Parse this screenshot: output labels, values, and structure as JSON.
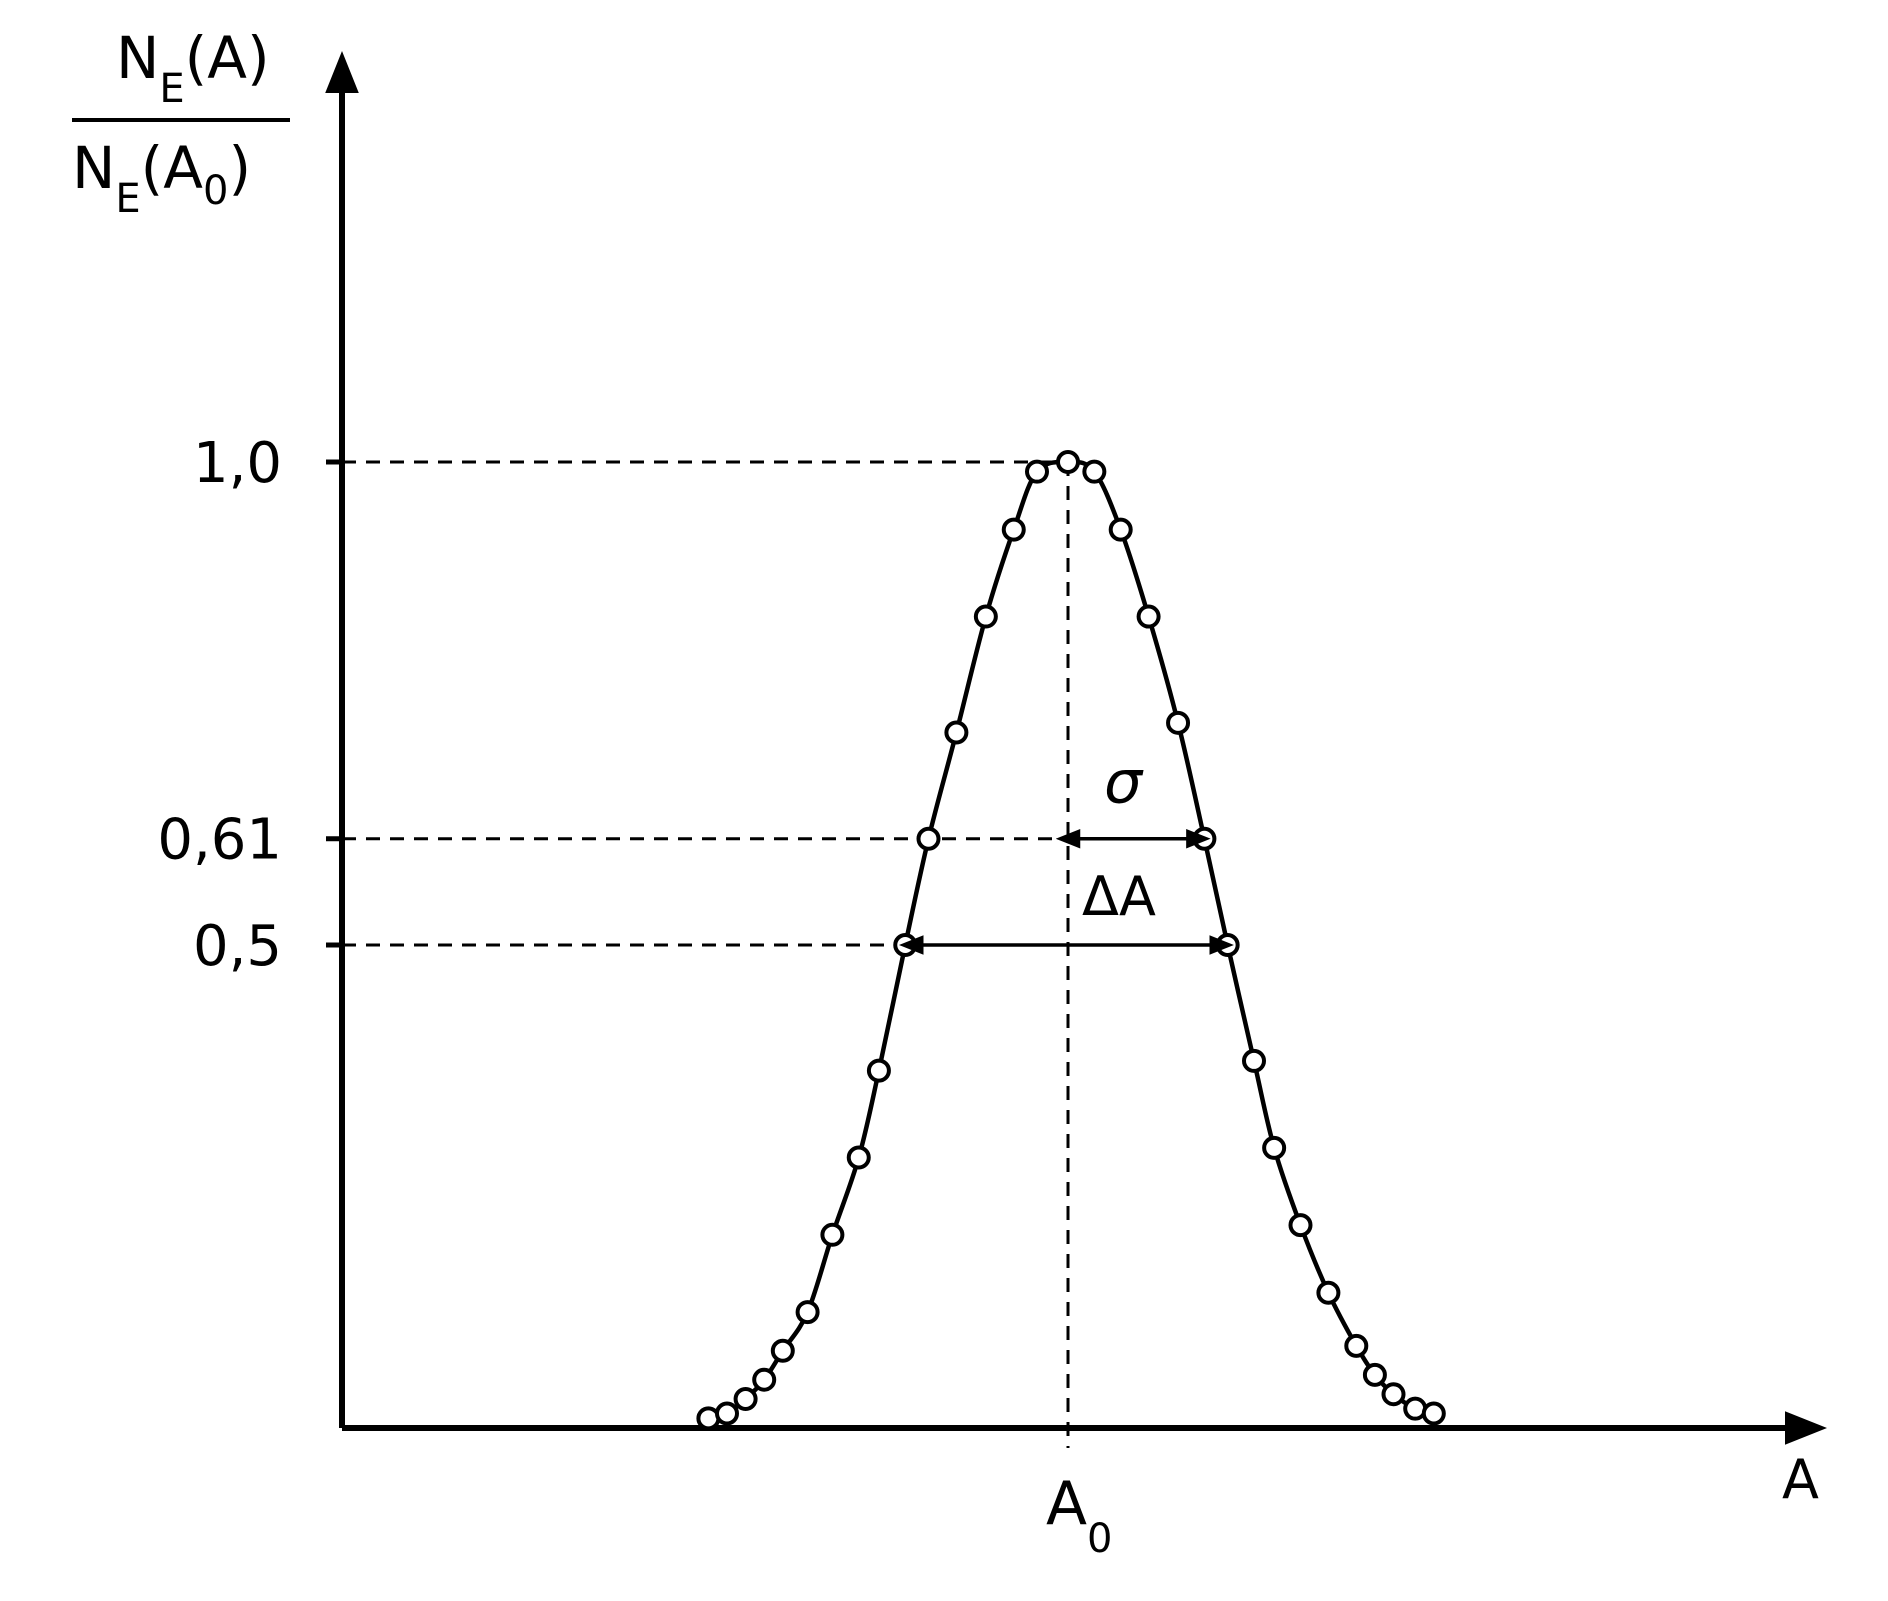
{
  "chart_data": {
    "type": "line",
    "title": "",
    "ylabel": {
      "numerator": {
        "main": "N",
        "sub": "E",
        "arg": "(A)"
      },
      "denominator": {
        "main": "N",
        "sub": "E",
        "arg_open": "(A",
        "arg_sub": "0",
        "arg_close": ")"
      }
    },
    "xlabel": "A",
    "x_center_label": {
      "main": "A",
      "sub": "0"
    },
    "y_ticks": [
      {
        "value": 1.0,
        "label": "1,0"
      },
      {
        "value": 0.61,
        "label": "0,61"
      },
      {
        "value": 0.5,
        "label": "0,5"
      }
    ],
    "ylim": [
      0,
      1.0
    ],
    "xlim": [
      -4.0,
      4.0
    ],
    "annotations": {
      "sigma_label": "σ",
      "delta_label": "ΔA"
    },
    "series": [
      {
        "points": [
          [
            -2.32,
            0.01
          ],
          [
            -2.2,
            0.015
          ],
          [
            -2.08,
            0.03
          ],
          [
            -1.96,
            0.05
          ],
          [
            -1.84,
            0.08
          ],
          [
            -1.68,
            0.12
          ],
          [
            -1.52,
            0.2
          ],
          [
            -1.35,
            0.28
          ],
          [
            -1.22,
            0.37
          ],
          [
            -1.05,
            0.5
          ],
          [
            -0.9,
            0.61
          ],
          [
            -0.72,
            0.72
          ],
          [
            -0.53,
            0.84
          ],
          [
            -0.35,
            0.93
          ],
          [
            -0.2,
            0.99
          ],
          [
            0.0,
            1.0
          ],
          [
            0.17,
            0.99
          ],
          [
            0.34,
            0.93
          ],
          [
            0.52,
            0.84
          ],
          [
            0.71,
            0.73
          ],
          [
            0.88,
            0.61
          ],
          [
            1.03,
            0.5
          ],
          [
            1.2,
            0.38
          ],
          [
            1.33,
            0.29
          ],
          [
            1.5,
            0.21
          ],
          [
            1.68,
            0.14
          ],
          [
            1.86,
            0.085
          ],
          [
            1.98,
            0.055
          ],
          [
            2.1,
            0.035
          ],
          [
            2.24,
            0.02
          ],
          [
            2.36,
            0.015
          ]
        ]
      }
    ]
  }
}
